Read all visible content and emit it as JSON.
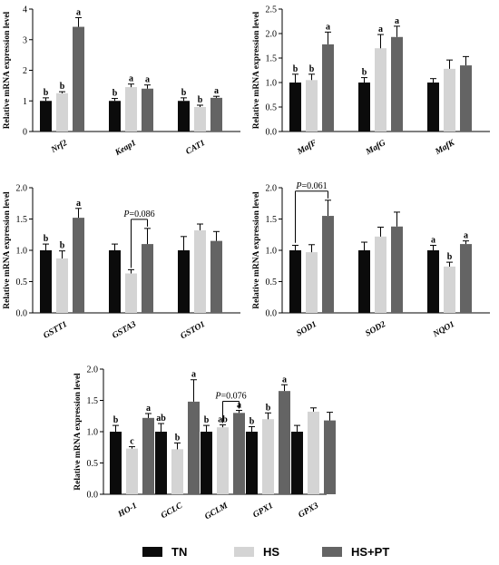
{
  "colors": {
    "TN": "#0b0b0b",
    "HS": "#d4d4d4",
    "HS+PT": "#646464"
  },
  "legend": [
    {
      "key": "TN",
      "label": "TN"
    },
    {
      "key": "HS",
      "label": "HS"
    },
    {
      "key": "HS+PT",
      "label": "HS+PT"
    }
  ],
  "chart_data": [
    {
      "type": "bar",
      "ylabel": "Relative mRNA expression level",
      "ylim": [
        0,
        4
      ],
      "yticks": [
        "0",
        "1",
        "2",
        "3",
        "4"
      ],
      "categories": [
        "Nrf2",
        "Keap1",
        "CAT1"
      ],
      "series": [
        {
          "name": "TN",
          "values": [
            1.0,
            1.0,
            1.0
          ],
          "errors": [
            0.1,
            0.08,
            0.1
          ],
          "letters": [
            "b",
            "b",
            "b"
          ]
        },
        {
          "name": "HS",
          "values": [
            1.25,
            1.45,
            0.8
          ],
          "errors": [
            0.05,
            0.1,
            0.06
          ],
          "letters": [
            "b",
            "a",
            "b"
          ]
        },
        {
          "name": "HS+PT",
          "values": [
            3.42,
            1.4,
            1.1
          ],
          "errors": [
            0.3,
            0.12,
            0.05
          ],
          "letters": [
            "a",
            "a",
            "a"
          ]
        }
      ]
    },
    {
      "type": "bar",
      "ylabel": "Relative mRNA expression level",
      "ylim": [
        0,
        2.5
      ],
      "yticks": [
        "0.0",
        "0.5",
        "1.0",
        "1.5",
        "2.0",
        "2.5"
      ],
      "categories": [
        "MafF",
        "MafG",
        "MafK"
      ],
      "series": [
        {
          "name": "TN",
          "values": [
            1.0,
            1.0,
            1.0
          ],
          "errors": [
            0.17,
            0.1,
            0.08
          ],
          "letters": [
            "b",
            "b",
            ""
          ]
        },
        {
          "name": "HS",
          "values": [
            1.05,
            1.7,
            1.28
          ],
          "errors": [
            0.12,
            0.28,
            0.18
          ],
          "letters": [
            "b",
            "a",
            ""
          ]
        },
        {
          "name": "HS+PT",
          "values": [
            1.78,
            1.93,
            1.35
          ],
          "errors": [
            0.25,
            0.22,
            0.18
          ],
          "letters": [
            "a",
            "a",
            ""
          ]
        }
      ]
    },
    {
      "type": "bar",
      "ylabel": "Relative mRNA expression level",
      "ylim": [
        0,
        2.0
      ],
      "yticks": [
        "0.0",
        "0.5",
        "1.0",
        "1.5",
        "2.0"
      ],
      "categories": [
        "GSTT1",
        "GSTA3",
        "GSTO1"
      ],
      "series": [
        {
          "name": "TN",
          "values": [
            1.0,
            1.0,
            1.0
          ],
          "errors": [
            0.1,
            0.1,
            0.22
          ],
          "letters": [
            "b",
            "",
            ""
          ]
        },
        {
          "name": "HS",
          "values": [
            0.87,
            0.63,
            1.32
          ],
          "errors": [
            0.12,
            0.06,
            0.1
          ],
          "letters": [
            "b",
            "",
            ""
          ]
        },
        {
          "name": "HS+PT",
          "values": [
            1.52,
            1.1,
            1.15
          ],
          "errors": [
            0.15,
            0.25,
            0.15
          ],
          "letters": [
            "a",
            "",
            ""
          ]
        }
      ],
      "annotation": {
        "text": "P=0.086",
        "category": 1
      }
    },
    {
      "type": "bar",
      "ylabel": "Relative mRNA expression level",
      "ylim": [
        0,
        2.0
      ],
      "yticks": [
        "0.0",
        "0.5",
        "1.0",
        "1.5",
        "2.0"
      ],
      "categories": [
        "SOD1",
        "SOD2",
        "NQO1"
      ],
      "series": [
        {
          "name": "TN",
          "values": [
            1.0,
            1.0,
            1.0
          ],
          "errors": [
            0.08,
            0.13,
            0.08
          ],
          "letters": [
            "",
            "",
            "a"
          ]
        },
        {
          "name": "HS",
          "values": [
            0.97,
            1.22,
            0.74
          ],
          "errors": [
            0.12,
            0.15,
            0.07
          ],
          "letters": [
            "",
            "",
            "b"
          ]
        },
        {
          "name": "HS+PT",
          "values": [
            1.55,
            1.38,
            1.1
          ],
          "errors": [
            0.25,
            0.23,
            0.05
          ],
          "letters": [
            "",
            "",
            "a"
          ]
        }
      ],
      "annotation": {
        "text": "P=0.061",
        "category": 0
      }
    },
    {
      "type": "bar",
      "ylabel": "Relative mRNA expression level",
      "ylim": [
        0,
        2.0
      ],
      "yticks": [
        "0.0",
        "0.5",
        "1.0",
        "1.5",
        "2.0"
      ],
      "categories": [
        "HO-1",
        "GCLC",
        "GCLM",
        "GPX1",
        "GPX3"
      ],
      "series": [
        {
          "name": "TN",
          "values": [
            1.0,
            1.0,
            1.0,
            1.0,
            1.0
          ],
          "errors": [
            0.1,
            0.13,
            0.1,
            0.08,
            0.1
          ],
          "letters": [
            "b",
            "ab",
            "b",
            "b",
            ""
          ]
        },
        {
          "name": "HS",
          "values": [
            0.73,
            0.72,
            1.07,
            1.2,
            1.32
          ],
          "errors": [
            0.03,
            0.1,
            0.04,
            0.1,
            0.06
          ],
          "letters": [
            "c",
            "b",
            "ab",
            "b",
            ""
          ]
        },
        {
          "name": "HS+PT",
          "values": [
            1.22,
            1.48,
            1.3,
            1.65,
            1.18
          ],
          "errors": [
            0.07,
            0.35,
            0.04,
            0.1,
            0.13
          ],
          "letters": [
            "a",
            "a",
            "a",
            "a",
            ""
          ]
        }
      ],
      "annotation": {
        "text": "P=0.076",
        "category": 2
      }
    }
  ]
}
